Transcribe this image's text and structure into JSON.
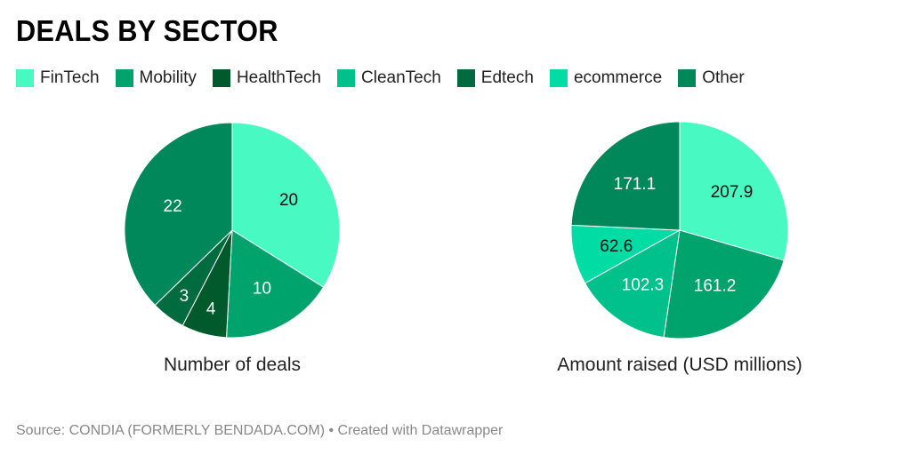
{
  "title": "DEALS BY SECTOR",
  "legend": [
    {
      "label": "FinTech",
      "color": "#48f9c1"
    },
    {
      "label": "Mobility",
      "color": "#00a36c"
    },
    {
      "label": "HealthTech",
      "color": "#005a2c"
    },
    {
      "label": "CleanTech",
      "color": "#00c08b"
    },
    {
      "label": "Edtech",
      "color": "#006b3f"
    },
    {
      "label": "ecommerce",
      "color": "#00dca4"
    },
    {
      "label": "Other",
      "color": "#00885a"
    }
  ],
  "chart_data": [
    {
      "type": "pie",
      "title": "Number of deals",
      "slices": [
        {
          "category": "FinTech",
          "value": 20,
          "label": "20"
        },
        {
          "category": "Mobility",
          "value": 10,
          "label": "10"
        },
        {
          "category": "HealthTech",
          "value": 4,
          "label": "4"
        },
        {
          "category": "Edtech",
          "value": 3,
          "label": "3"
        },
        {
          "category": "Other",
          "value": 22,
          "label": "22"
        }
      ]
    },
    {
      "type": "pie",
      "title": "Amount raised (USD millions)",
      "slices": [
        {
          "category": "FinTech",
          "value": 207.9,
          "label": "207.9"
        },
        {
          "category": "Mobility",
          "value": 161.2,
          "label": "161.2"
        },
        {
          "category": "CleanTech",
          "value": 102.3,
          "label": "102.3"
        },
        {
          "category": "ecommerce",
          "value": 62.6,
          "label": "62.6"
        },
        {
          "category": "Other",
          "value": 171.1,
          "label": "171.1"
        }
      ]
    }
  ],
  "source": "Source: CONDIA (FORMERLY BENDADA.COM) • Created with Datawrapper"
}
